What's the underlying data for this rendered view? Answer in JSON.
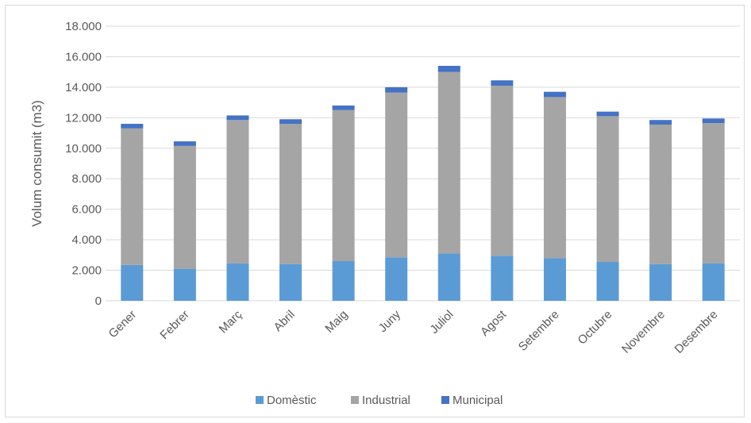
{
  "chart_data": {
    "type": "bar",
    "stacked": true,
    "title": "",
    "xlabel": "",
    "ylabel": "Volum consumit (m3)",
    "ylim": [
      0,
      18000
    ],
    "yticks": [
      0,
      2000,
      4000,
      6000,
      8000,
      10000,
      12000,
      14000,
      16000,
      18000
    ],
    "ytick_labels": [
      "0",
      "2.000",
      "4.000",
      "6.000",
      "8.000",
      "10.000",
      "12.000",
      "14.000",
      "16.000",
      "18.000"
    ],
    "grid": true,
    "legend_position": "bottom",
    "categories": [
      "Gener",
      "Febrer",
      "Març",
      "Abril",
      "Maig",
      "Juny",
      "Juliol",
      "Agost",
      "Setembre",
      "Octubre",
      "Novembre",
      "Desembre"
    ],
    "series": [
      {
        "name": "Domèstic",
        "color": "#5b9bd5",
        "values": [
          2350,
          2100,
          2450,
          2400,
          2600,
          2850,
          3100,
          2950,
          2800,
          2550,
          2400,
          2450
        ]
      },
      {
        "name": "Industrial",
        "color": "#a5a5a5",
        "values": [
          8950,
          8050,
          9400,
          9200,
          9900,
          10800,
          11900,
          11150,
          10550,
          9550,
          9150,
          9200
        ]
      },
      {
        "name": "Municipal",
        "color": "#4472c4",
        "values": [
          300,
          300,
          300,
          300,
          300,
          350,
          400,
          350,
          350,
          300,
          300,
          300
        ]
      }
    ]
  }
}
